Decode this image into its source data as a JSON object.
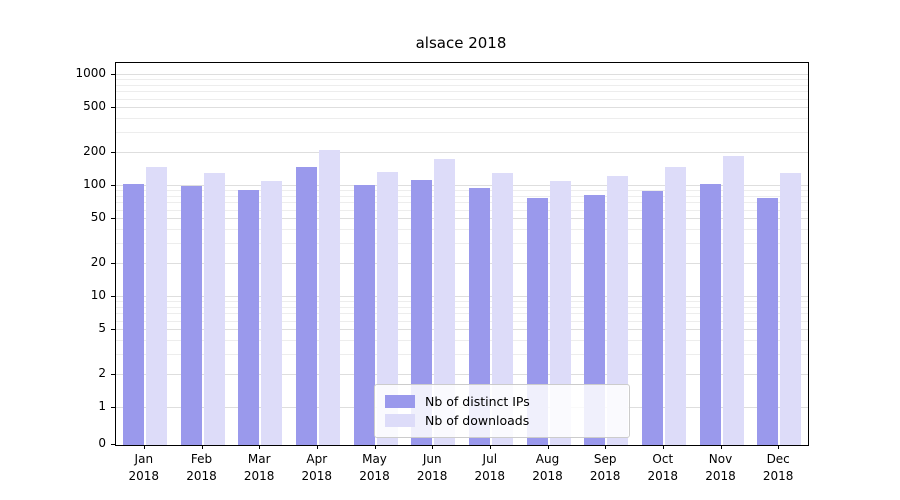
{
  "chart_data": {
    "type": "bar",
    "title": "alsace 2018",
    "categories": [
      "Jan",
      "Feb",
      "Mar",
      "Apr",
      "May",
      "Jun",
      "Jul",
      "Aug",
      "Sep",
      "Oct",
      "Nov",
      "Dec"
    ],
    "category_year": "2018",
    "series": [
      {
        "name": "Nb of distinct IPs",
        "color": "#9a99ec",
        "values": [
          105,
          100,
          92,
          150,
          102,
          113,
          97,
          78,
          83,
          90,
          104,
          78
        ]
      },
      {
        "name": "Nb of downloads",
        "color": "#dddcf9",
        "values": [
          150,
          130,
          112,
          210,
          135,
          175,
          130,
          112,
          122,
          150,
          185,
          130
        ]
      }
    ],
    "yticks": [
      0,
      1,
      2,
      5,
      10,
      20,
      50,
      100,
      200,
      500,
      1000
    ],
    "yscale": "symlog",
    "ylim": [
      0,
      1300
    ],
    "grid": true,
    "grid_color": "#ededed",
    "legend_position": "lower-center-inside"
  }
}
